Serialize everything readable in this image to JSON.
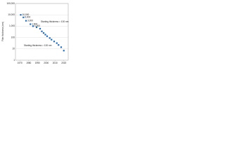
{
  "chart_data": {
    "type": "scatter",
    "y_label": "Film thickness (nm)",
    "annotations": [
      "Starting thickness = 100 nm",
      "Starting thickness = 100 nm"
    ],
    "x": [
      1971,
      1974,
      1977,
      1982,
      1985,
      1989,
      1993,
      1995,
      1997,
      1999,
      2001,
      2004,
      2006,
      2009,
      2012,
      2014,
      2017,
      2020
    ],
    "values": [
      10000,
      6000,
      3000,
      1500,
      1000,
      800,
      600,
      350,
      250,
      180,
      130,
      90,
      65,
      45,
      32,
      22,
      14,
      7
    ],
    "value_labels": [
      "10,000",
      "6,000",
      "3,000",
      "1,500",
      "1,000",
      null,
      null,
      null,
      null,
      null,
      null,
      null,
      null,
      null,
      null,
      null,
      null,
      null
    ],
    "color": "#2b6cb0",
    "xlim": [
      1965,
      2025
    ],
    "xticks": [
      1970,
      1980,
      1990,
      2000,
      2010,
      2020
    ],
    "ylim": [
      1,
      100000
    ],
    "log_y": true,
    "yticks": [
      1,
      10,
      100,
      {
        "value": 1000,
        "label": "1,000"
      },
      {
        "value": 10000,
        "label": "10,000"
      },
      {
        "value": 100000,
        "label": "100,000"
      }
    ],
    "grid": true
  }
}
